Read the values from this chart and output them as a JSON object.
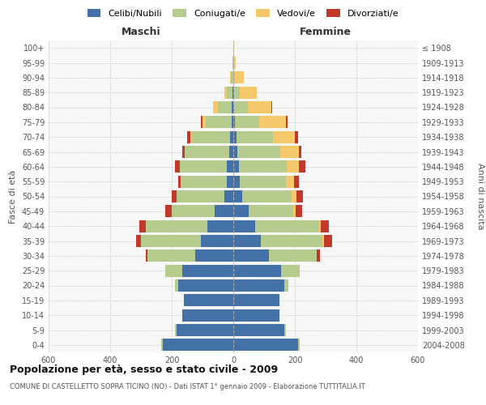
{
  "age_groups": [
    "0-4",
    "5-9",
    "10-14",
    "15-19",
    "20-24",
    "25-29",
    "30-34",
    "35-39",
    "40-44",
    "45-49",
    "50-54",
    "55-59",
    "60-64",
    "65-69",
    "70-74",
    "75-79",
    "80-84",
    "85-89",
    "90-94",
    "95-99",
    "100+"
  ],
  "birth_years": [
    "2004-2008",
    "1999-2003",
    "1994-1998",
    "1989-1993",
    "1984-1988",
    "1979-1983",
    "1974-1978",
    "1969-1973",
    "1964-1968",
    "1959-1963",
    "1954-1958",
    "1949-1953",
    "1944-1948",
    "1939-1943",
    "1934-1938",
    "1929-1933",
    "1924-1928",
    "1919-1923",
    "1914-1918",
    "1909-1913",
    "≤ 1908"
  ],
  "males": {
    "celibi": [
      230,
      185,
      165,
      160,
      180,
      165,
      125,
      105,
      85,
      60,
      30,
      20,
      20,
      12,
      10,
      5,
      5,
      2,
      0,
      0,
      0
    ],
    "coniugati": [
      5,
      5,
      0,
      0,
      10,
      55,
      155,
      195,
      200,
      140,
      155,
      150,
      155,
      145,
      125,
      85,
      45,
      18,
      8,
      2,
      0
    ],
    "vedovi": [
      0,
      0,
      0,
      0,
      0,
      0,
      0,
      0,
      0,
      0,
      0,
      0,
      0,
      0,
      5,
      10,
      15,
      8,
      2,
      0,
      0
    ],
    "divorziati": [
      0,
      0,
      0,
      0,
      0,
      2,
      5,
      15,
      20,
      20,
      15,
      10,
      15,
      10,
      10,
      5,
      0,
      0,
      0,
      0,
      0
    ]
  },
  "females": {
    "nubili": [
      210,
      165,
      150,
      150,
      165,
      155,
      115,
      90,
      70,
      50,
      30,
      22,
      18,
      12,
      10,
      5,
      3,
      2,
      0,
      0,
      0
    ],
    "coniugate": [
      5,
      5,
      0,
      0,
      15,
      60,
      155,
      200,
      210,
      145,
      160,
      150,
      155,
      140,
      120,
      80,
      45,
      18,
      5,
      2,
      0
    ],
    "vedove": [
      0,
      0,
      0,
      0,
      0,
      0,
      2,
      5,
      5,
      8,
      15,
      25,
      40,
      60,
      70,
      85,
      75,
      55,
      28,
      6,
      2
    ],
    "divorziate": [
      0,
      0,
      0,
      0,
      0,
      2,
      10,
      25,
      25,
      20,
      20,
      15,
      20,
      10,
      10,
      5,
      2,
      0,
      0,
      0,
      0
    ]
  },
  "colors": {
    "celibi": "#4472a8",
    "coniugati": "#b5cc8e",
    "vedovi": "#f5c96b",
    "divorziati": "#c0392b"
  },
  "title": "Popolazione per età, sesso e stato civile - 2009",
  "subtitle": "COMUNE DI CASTELLETTO SOPRA TICINO (NO) - Dati ISTAT 1° gennaio 2009 - Elaborazione TUTTITALIA.IT",
  "xlabel_left": "Maschi",
  "xlabel_right": "Femmine",
  "ylabel_left": "Fasce di età",
  "ylabel_right": "Anni di nascita",
  "xlim": 600,
  "legend_labels": [
    "Celibi/Nubili",
    "Coniugati/e",
    "Vedovi/e",
    "Divorziati/e"
  ]
}
